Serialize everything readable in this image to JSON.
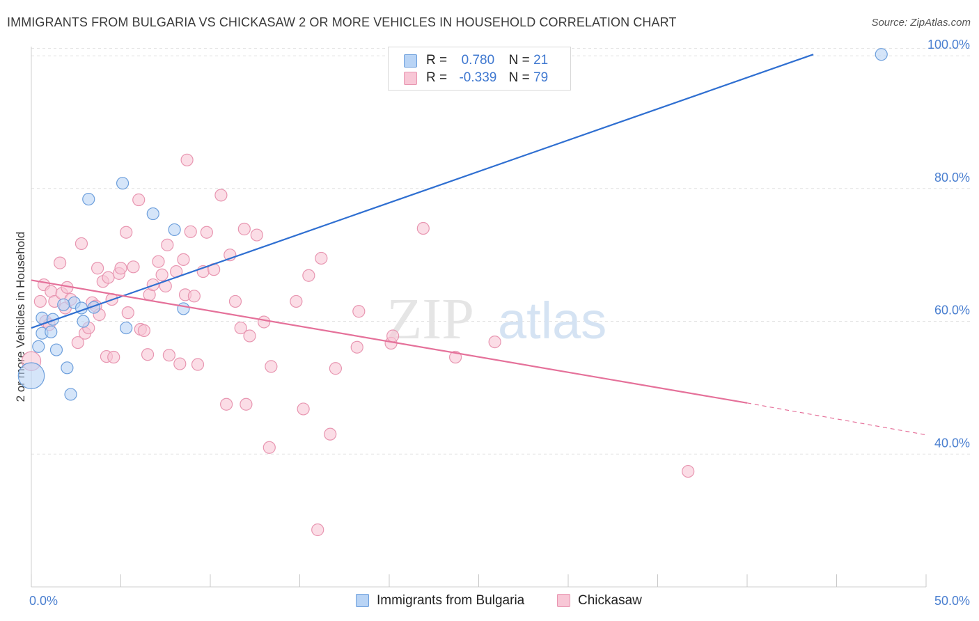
{
  "title": "IMMIGRANTS FROM BULGARIA VS CHICKASAW 2 OR MORE VEHICLES IN HOUSEHOLD CORRELATION CHART",
  "source": "Source: ZipAtlas.com",
  "watermark": {
    "zip": "ZIP",
    "atlas": "atlas"
  },
  "legend_top": [
    {
      "r_label": "R =",
      "r_value": "0.780",
      "n_label": "N =",
      "n_value": "21"
    },
    {
      "r_label": "R =",
      "r_value": "-0.339",
      "n_label": "N =",
      "n_value": "79"
    }
  ],
  "legend_bottom": [
    {
      "label": "Immigrants from Bulgaria"
    },
    {
      "label": "Chickasaw"
    }
  ],
  "colors": {
    "bulgaria_fill": "#b9d4f5",
    "bulgaria_stroke": "#6d9fdc",
    "bulgaria_line": "#2f6fd1",
    "chickasaw_fill": "#f8c7d6",
    "chickasaw_stroke": "#e896b1",
    "chickasaw_line": "#e5719a",
    "tick_text": "#4a7fd0",
    "grid": "#e2e2e2"
  },
  "chart_data": {
    "type": "scatter",
    "title": "IMMIGRANTS FROM BULGARIA VS CHICKASAW 2 OR MORE VEHICLES IN HOUSEHOLD CORRELATION CHART",
    "xlabel": "",
    "ylabel": "2 or more Vehicles in Household",
    "xlim": [
      0,
      50
    ],
    "ylim": [
      20,
      102
    ],
    "x_tick_labels": [
      "0.0%",
      "50.0%"
    ],
    "y_ticks": [
      40,
      60,
      80,
      100
    ],
    "y_tick_labels": [
      "40.0%",
      "60.0%",
      "80.0%",
      "100.0%"
    ],
    "grid": true,
    "legend_position": "top-center",
    "series": [
      {
        "name": "Immigrants from Bulgaria",
        "r": 0.78,
        "n": 21,
        "points": [
          [
            0.0,
            51.8,
            22
          ],
          [
            0.4,
            56.2,
            10
          ],
          [
            0.6,
            60.5,
            10
          ],
          [
            0.6,
            58.2,
            10
          ],
          [
            1.1,
            58.4,
            10
          ],
          [
            1.2,
            60.3,
            10
          ],
          [
            1.4,
            55.7,
            10
          ],
          [
            2.0,
            53.0,
            10
          ],
          [
            2.2,
            49.0,
            10
          ],
          [
            2.4,
            62.8,
            10
          ],
          [
            2.8,
            62.0,
            10
          ],
          [
            2.9,
            60.0,
            10
          ],
          [
            3.2,
            78.4,
            10
          ],
          [
            3.5,
            62.1,
            10
          ],
          [
            5.1,
            80.8,
            10
          ],
          [
            5.3,
            59.0,
            10
          ],
          [
            6.8,
            76.2,
            10
          ],
          [
            8.0,
            73.8,
            10
          ],
          [
            8.5,
            61.9,
            10
          ],
          [
            1.8,
            62.5,
            10
          ],
          [
            47.5,
            100.2,
            10
          ]
        ],
        "trend": {
          "x": [
            0,
            43.7
          ],
          "y": [
            59.0,
            100.2
          ]
        }
      },
      {
        "name": "Chickasaw",
        "r": -0.339,
        "n": 79,
        "points": [
          [
            0.0,
            54.0,
            16
          ],
          [
            0.5,
            63.0,
            10
          ],
          [
            0.7,
            65.5,
            10
          ],
          [
            0.8,
            60.0,
            10
          ],
          [
            1.0,
            59.5,
            10
          ],
          [
            1.1,
            64.5,
            10
          ],
          [
            1.3,
            63.0,
            10
          ],
          [
            1.6,
            68.8,
            10
          ],
          [
            1.7,
            64.2,
            10
          ],
          [
            1.9,
            62.0,
            10
          ],
          [
            2.0,
            65.1,
            10
          ],
          [
            2.2,
            63.3,
            10
          ],
          [
            2.6,
            56.8,
            10
          ],
          [
            2.8,
            71.7,
            10
          ],
          [
            3.0,
            58.2,
            10
          ],
          [
            3.2,
            59.0,
            10
          ],
          [
            3.4,
            62.8,
            10
          ],
          [
            3.6,
            62.3,
            10
          ],
          [
            3.7,
            68.0,
            10
          ],
          [
            3.8,
            61.0,
            10
          ],
          [
            4.0,
            66.0,
            10
          ],
          [
            4.2,
            54.7,
            10
          ],
          [
            4.3,
            66.6,
            10
          ],
          [
            4.5,
            63.3,
            10
          ],
          [
            4.6,
            54.6,
            10
          ],
          [
            4.9,
            67.2,
            10
          ],
          [
            5.0,
            68.0,
            10
          ],
          [
            5.3,
            73.4,
            10
          ],
          [
            5.4,
            61.3,
            10
          ],
          [
            5.7,
            68.2,
            10
          ],
          [
            6.0,
            78.3,
            10
          ],
          [
            6.1,
            58.8,
            10
          ],
          [
            6.3,
            58.6,
            10
          ],
          [
            6.5,
            55.0,
            10
          ],
          [
            6.6,
            64.0,
            10
          ],
          [
            6.8,
            65.5,
            10
          ],
          [
            7.1,
            69.0,
            10
          ],
          [
            7.3,
            67.0,
            10
          ],
          [
            7.5,
            65.3,
            10
          ],
          [
            7.6,
            71.5,
            10
          ],
          [
            7.7,
            54.9,
            10
          ],
          [
            8.1,
            67.5,
            10
          ],
          [
            8.3,
            53.6,
            10
          ],
          [
            8.5,
            69.3,
            10
          ],
          [
            8.6,
            64.0,
            10
          ],
          [
            8.7,
            84.3,
            10
          ],
          [
            8.9,
            73.5,
            10
          ],
          [
            9.1,
            63.8,
            10
          ],
          [
            9.3,
            53.5,
            10
          ],
          [
            9.6,
            67.5,
            10
          ],
          [
            9.8,
            73.4,
            10
          ],
          [
            10.2,
            67.8,
            10
          ],
          [
            10.6,
            79.0,
            10
          ],
          [
            10.9,
            47.5,
            10
          ],
          [
            11.1,
            70.0,
            10
          ],
          [
            11.4,
            63.0,
            10
          ],
          [
            11.7,
            59.0,
            10
          ],
          [
            11.9,
            73.9,
            10
          ],
          [
            12.0,
            47.5,
            10
          ],
          [
            12.2,
            57.8,
            10
          ],
          [
            12.6,
            73.0,
            10
          ],
          [
            13.0,
            59.9,
            10
          ],
          [
            13.3,
            41.0,
            10
          ],
          [
            13.4,
            53.2,
            10
          ],
          [
            14.8,
            63.0,
            10
          ],
          [
            15.2,
            46.8,
            10
          ],
          [
            15.5,
            66.9,
            10
          ],
          [
            16.0,
            28.6,
            10
          ],
          [
            16.2,
            69.5,
            10
          ],
          [
            16.7,
            43.0,
            10
          ],
          [
            17.0,
            52.9,
            10
          ],
          [
            18.2,
            56.1,
            10
          ],
          [
            18.3,
            61.5,
            10
          ],
          [
            20.1,
            56.7,
            10
          ],
          [
            20.2,
            57.8,
            10
          ],
          [
            21.9,
            74.0,
            10
          ],
          [
            23.7,
            54.6,
            10
          ],
          [
            25.9,
            56.9,
            10
          ],
          [
            36.7,
            37.4,
            10
          ]
        ],
        "trend": {
          "x": [
            0,
            40,
            50
          ],
          "y": [
            66.2,
            47.7,
            42.9
          ]
        }
      }
    ]
  }
}
